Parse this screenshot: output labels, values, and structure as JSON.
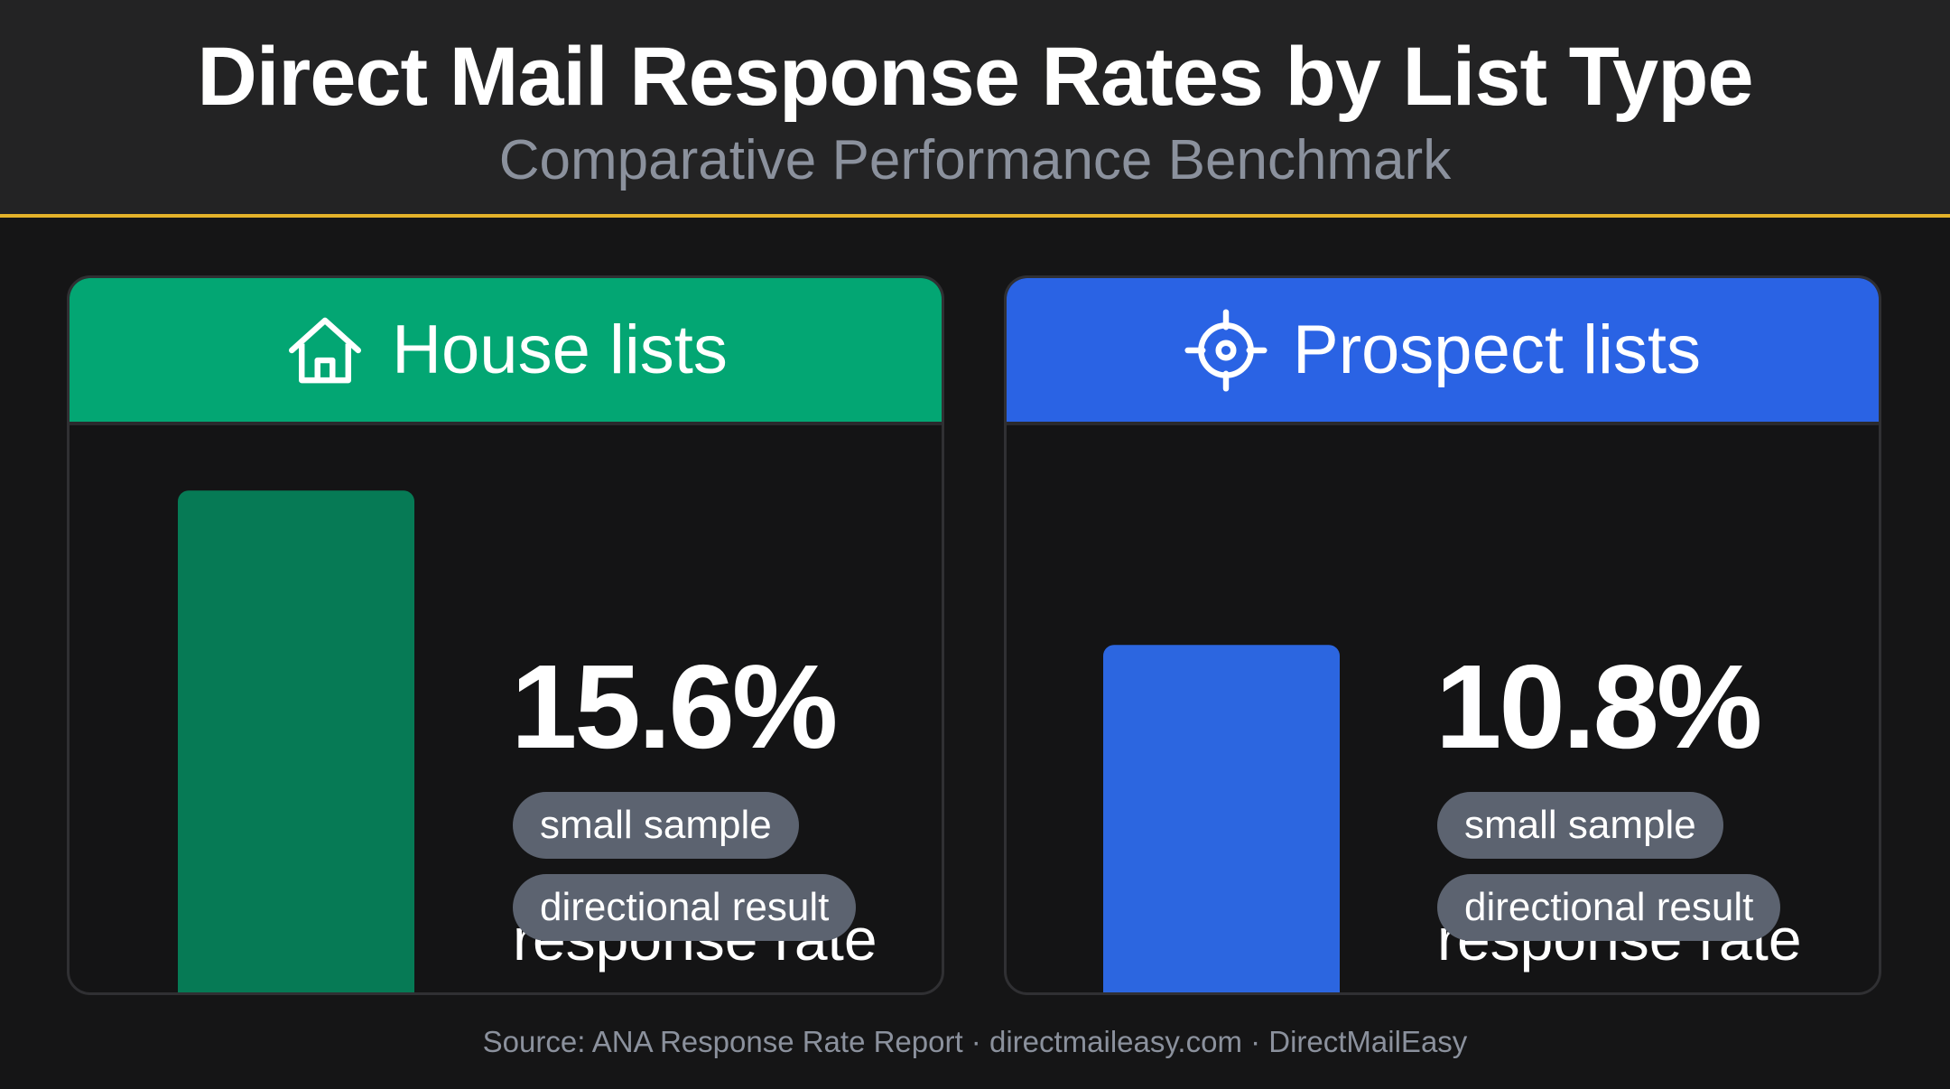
{
  "chart_data": {
    "type": "bar",
    "title": "Direct Mail Response Rates by List Type",
    "subtitle": "Comparative Performance Benchmark",
    "categories": [
      "House lists",
      "Prospect lists"
    ],
    "values": [
      15.6,
      10.8
    ],
    "value_labels": [
      "15.6%",
      "10.8%"
    ],
    "value_caption": "response rate",
    "badges": [
      "small sample",
      "directional result"
    ],
    "ylim": [
      0,
      16
    ],
    "colors": [
      "#067a55",
      "#2c66e0"
    ],
    "header_colors": [
      "#03a673",
      "#2a63e4"
    ],
    "icons": [
      "home-icon",
      "target-icon"
    ],
    "source": "Source: ANA Response Rate Report · directmaileasy.com · DirectMailEasy",
    "grid": false,
    "legend": "none"
  }
}
